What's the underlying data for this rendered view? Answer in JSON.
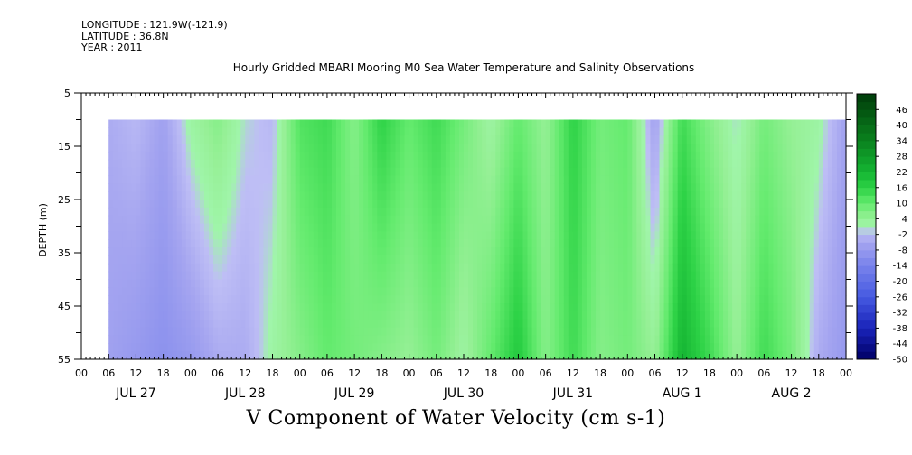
{
  "header": {
    "longitude": "LONGITUDE : 121.9W(-121.9)",
    "latitude": "LATITUDE : 36.8N",
    "year": "YEAR : 2011"
  },
  "chart_data": {
    "type": "heatmap",
    "title": "Hourly Gridded MBARI Mooring M0 Sea Water Temperature and Salinity Observations",
    "variable_title": "V Component of Water Velocity (cm s-1)",
    "xlabel": "",
    "ylabel": "DEPTH (m)",
    "x_range_hours": [
      0,
      168
    ],
    "y_range": [
      5,
      55
    ],
    "y_inverted": true,
    "data_depth_range": [
      10,
      55
    ],
    "data_start_hour": 6,
    "y_ticks": [
      "5",
      "15",
      "25",
      "35",
      "45",
      "55"
    ],
    "x_hour_ticks": [
      "00",
      "06",
      "12",
      "18",
      "00",
      "06",
      "12",
      "18",
      "00",
      "06",
      "12",
      "18",
      "00",
      "06",
      "12",
      "18",
      "00",
      "06",
      "12",
      "18",
      "00",
      "06",
      "12",
      "18",
      "00",
      "06",
      "12",
      "18",
      "00"
    ],
    "day_labels": [
      "JUL 27",
      "JUL 28",
      "JUL 29",
      "JUL 30",
      "JUL 31",
      "AUG  1",
      "AUG  2"
    ],
    "colorbar": {
      "labels": [
        "46",
        "40",
        "34",
        "28",
        "22",
        "16",
        "10",
        "4",
        "-2",
        "-8",
        "-14",
        "-20",
        "-26",
        "-32",
        "-38",
        "-44",
        "-50"
      ],
      "range": [
        -50,
        52
      ],
      "legend_position": "right"
    },
    "v_profile_by_hour": [
      {
        "hour": 6,
        "surface": -4,
        "bottom": -6
      },
      {
        "hour": 12,
        "surface": -2,
        "bottom": -8
      },
      {
        "hour": 18,
        "surface": -6,
        "bottom": -10
      },
      {
        "hour": 24,
        "surface": 2,
        "bottom": -8
      },
      {
        "hour": 30,
        "surface": 6,
        "bottom": -4
      },
      {
        "hour": 36,
        "surface": 0,
        "bottom": -4
      },
      {
        "hour": 42,
        "surface": -2,
        "bottom": 2
      },
      {
        "hour": 48,
        "surface": 12,
        "bottom": 6
      },
      {
        "hour": 54,
        "surface": 14,
        "bottom": 10
      },
      {
        "hour": 60,
        "surface": 6,
        "bottom": 8
      },
      {
        "hour": 66,
        "surface": 16,
        "bottom": 6
      },
      {
        "hour": 72,
        "surface": 10,
        "bottom": 4
      },
      {
        "hour": 78,
        "surface": 14,
        "bottom": 8
      },
      {
        "hour": 84,
        "surface": 8,
        "bottom": 2
      },
      {
        "hour": 90,
        "surface": 2,
        "bottom": 10
      },
      {
        "hour": 96,
        "surface": 10,
        "bottom": 18
      },
      {
        "hour": 102,
        "surface": 4,
        "bottom": 6
      },
      {
        "hour": 108,
        "surface": 16,
        "bottom": 14
      },
      {
        "hour": 114,
        "surface": 8,
        "bottom": 6
      },
      {
        "hour": 120,
        "surface": 10,
        "bottom": 8
      },
      {
        "hour": 126,
        "surface": -6,
        "bottom": 4
      },
      {
        "hour": 132,
        "surface": 14,
        "bottom": 22
      },
      {
        "hour": 138,
        "surface": 6,
        "bottom": 14
      },
      {
        "hour": 144,
        "surface": 0,
        "bottom": 4
      },
      {
        "hour": 150,
        "surface": 8,
        "bottom": 14
      },
      {
        "hour": 156,
        "surface": 4,
        "bottom": 8
      },
      {
        "hour": 162,
        "surface": 2,
        "bottom": -4
      },
      {
        "hour": 168,
        "surface": -6,
        "bottom": -8
      }
    ]
  }
}
